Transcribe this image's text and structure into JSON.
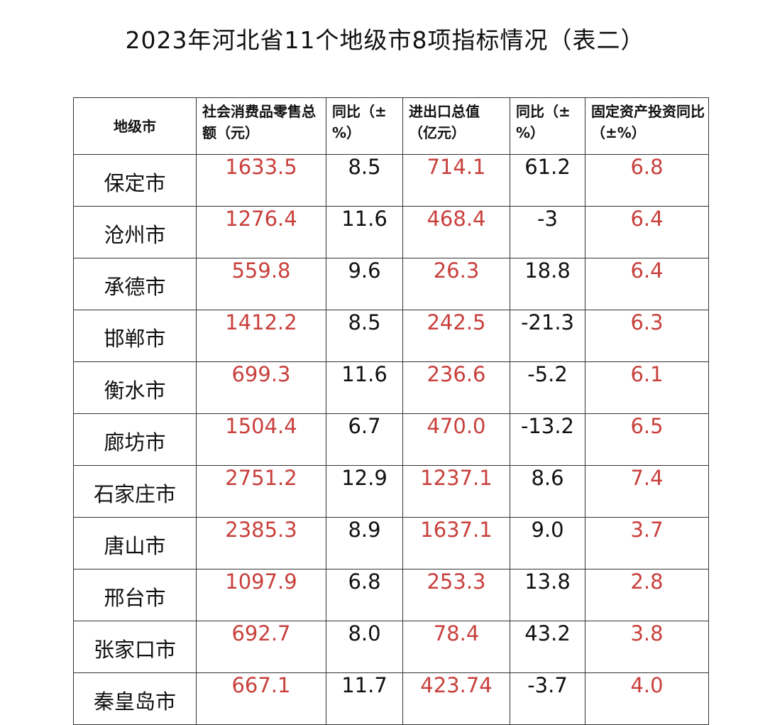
{
  "title": "2023年河北省11个地级市8项指标情况（表二）",
  "colors": {
    "highlight": "#c8403c",
    "text": "#111111"
  },
  "headers": [
    "地级市",
    "社会消费品零售总额（元）",
    "同比（±%）",
    "进出口总值（亿元）",
    "同比（±%）",
    "固定资产投资同比（±%）"
  ],
  "rows": [
    [
      "保定市",
      "1633.5",
      "8.5",
      "714.1",
      "61.2",
      "6.8"
    ],
    [
      "沧州市",
      "1276.4",
      "11.6",
      "468.4",
      "-3",
      "6.4"
    ],
    [
      "承德市",
      "559.8",
      "9.6",
      "26.3",
      "18.8",
      "6.4"
    ],
    [
      "邯郸市",
      "1412.2",
      "8.5",
      "242.5",
      "-21.3",
      "6.3"
    ],
    [
      "衡水市",
      "699.3",
      "11.6",
      "236.6",
      "-5.2",
      "6.1"
    ],
    [
      "廊坊市",
      "1504.4",
      "6.7",
      "470.0",
      "-13.2",
      "6.5"
    ],
    [
      "石家庄市",
      "2751.2",
      "12.9",
      "1237.1",
      "8.6",
      "7.4"
    ],
    [
      "唐山市",
      "2385.3",
      "8.9",
      "1637.1",
      "9.0",
      "3.7"
    ],
    [
      "邢台市",
      "1097.9",
      "6.8",
      "253.3",
      "13.8",
      "2.8"
    ],
    [
      "张家口市",
      "692.7",
      "8.0",
      "78.4",
      "43.2",
      "3.8"
    ],
    [
      "秦皇岛市",
      "667.1",
      "11.7",
      "423.74",
      "-3.7",
      "4.0"
    ]
  ]
}
